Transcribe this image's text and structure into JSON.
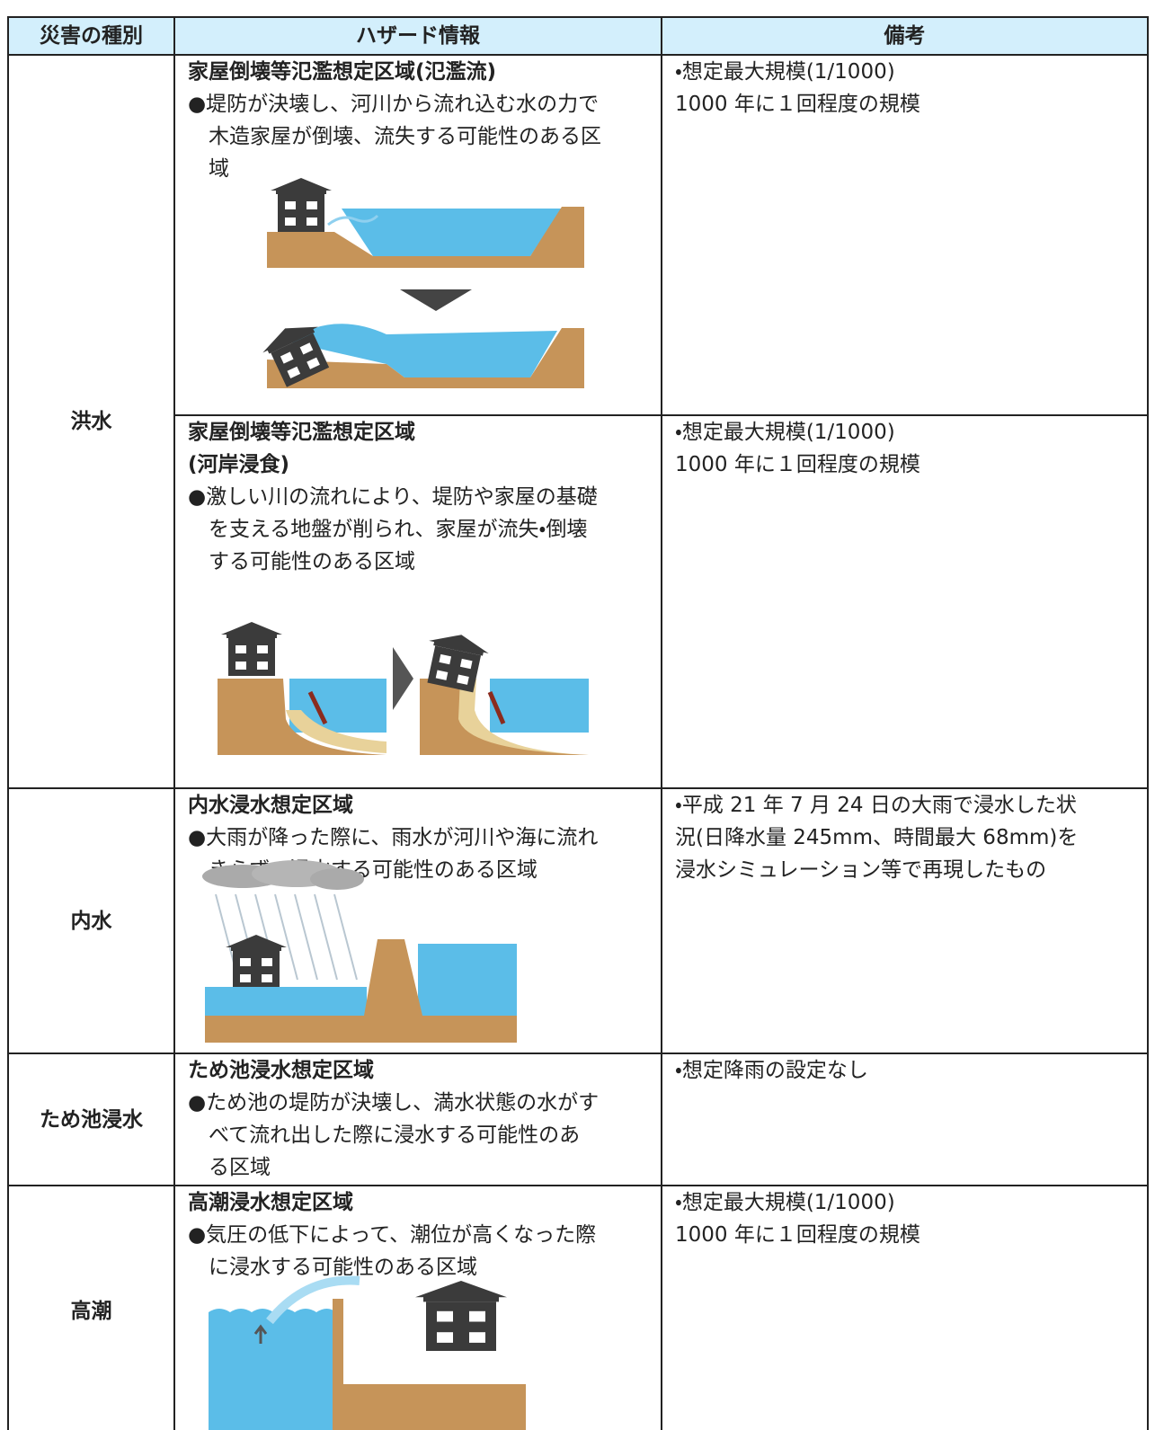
{
  "table": {
    "header": [
      "災害の種別",
      "ハザード情報",
      "備考"
    ],
    "rows": [
      {
        "label": "洪水",
        "entries": [
          {
            "title": [
              "家屋倒壊等氾濫想定区域(氾濫流)"
            ],
            "description": [
              "●堤防が決壊し、河川から流れ込む水の力で",
              "木造家屋が倒壊、流失する可能性のある区",
              "域"
            ],
            "notes": [
              "・想定最大規模(1/1000)",
              "1000 年に１回程度の規模"
            ]
          },
          {
            "title": [
              "家屋倒壊等氾濫想定区域",
              "(河岸浸食)"
            ],
            "description": [
              "●激しい川の流れにより、堤防や家屋の基礎",
              "を支える地盤が削られ、家屋が流失・倒壊",
              "する可能性のある区域"
            ],
            "notes": [
              "・想定最大規模(1/1000)",
              "1000 年に１回程度の規模"
            ]
          }
        ]
      },
      {
        "label": "内水",
        "entries": [
          {
            "title": [
              "内水浸水想定区域"
            ],
            "description": [
              "●大雨が降った際に、雨水が河川や海に流れ",
              "きらず、浸水する可能性のある区域"
            ],
            "notes": [
              "・平成 21 年 7 月 24 日の大雨で浸水した状",
              "況(日降水量 245mm、時間最大 68mm)を",
              "浸水シミュレーション等で再現したもの"
            ]
          }
        ]
      },
      {
        "label": "ため池浸水",
        "entries": [
          {
            "title": [
              "ため池浸水想定区域"
            ],
            "description": [
              "●ため池の堤防が決壊し、満水状態の水がす",
              "べて流れ出した際に浸水する可能性のあ",
              "る区域"
            ],
            "notes": [
              "・想定降雨の設定なし"
            ]
          }
        ]
      },
      {
        "label": "高潮",
        "entries": [
          {
            "title": [
              "高潮浸水想定区域"
            ],
            "description": [
              "●気圧の低下によって、潮位が高くなった際",
              "に浸水する可能性のある区域"
            ],
            "notes": [
              "・想定最大規模(1/1000)",
              "1000 年に１回程度の規模"
            ]
          }
        ]
      }
    ]
  }
}
